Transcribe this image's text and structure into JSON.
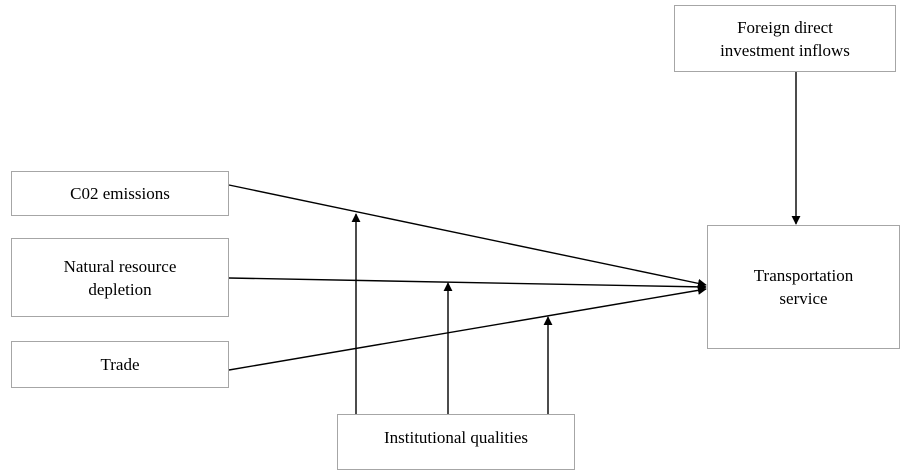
{
  "nodes": {
    "fdi": "Foreign direct\ninvestment inflows",
    "co2": "C02 emissions",
    "nrd": "Natural resource\ndepletion",
    "trade": "Trade",
    "transport": "Transportation\nservice",
    "inst": "Institutional qualities"
  },
  "colors": {
    "box_border": "#a6a6a6",
    "line": "#000000",
    "background": "#ffffff"
  }
}
